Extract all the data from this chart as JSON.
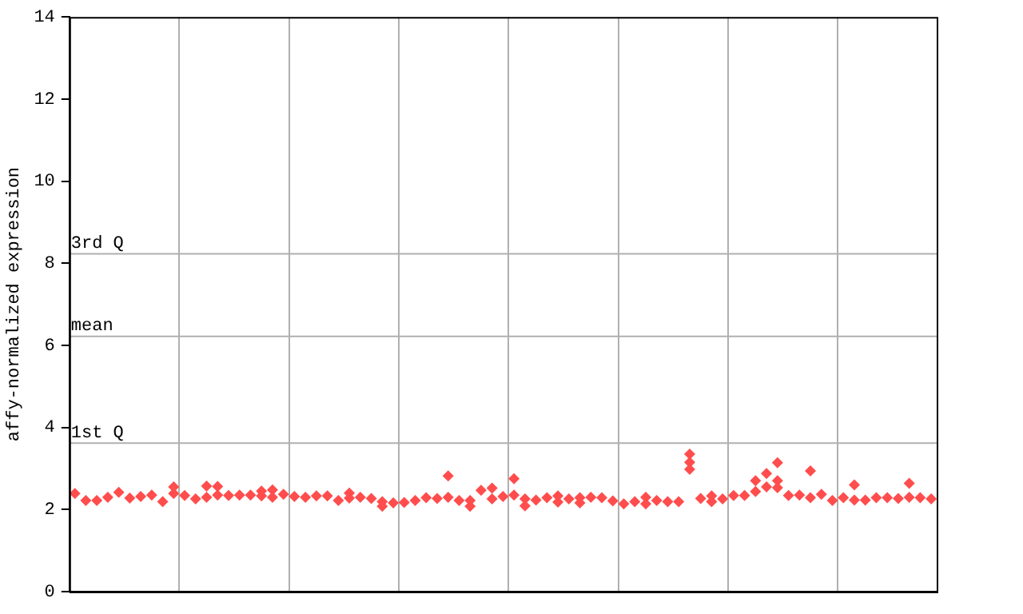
{
  "chart_data": {
    "type": "scatter",
    "ylabel": "affy-normalized expression",
    "categories": [
      null,
      null,
      null,
      null,
      null,
      null,
      null,
      null,
      null,
      null,
      null,
      null,
      null,
      null,
      null,
      null,
      null,
      null,
      null,
      null,
      null,
      null,
      null,
      null,
      null,
      null,
      null,
      null,
      null,
      null,
      null,
      null,
      null,
      null,
      null,
      null,
      null,
      null,
      null,
      null,
      null,
      null,
      null,
      null,
      null,
      null,
      null,
      null,
      null,
      null,
      null,
      null,
      null,
      null,
      null,
      null,
      null,
      null,
      null,
      null,
      null,
      null,
      null,
      null,
      null,
      null,
      null,
      null,
      null,
      null,
      null,
      null,
      null,
      null,
      null,
      null,
      null,
      null,
      null
    ],
    "ylim": [
      0,
      14
    ],
    "yticks": [
      0,
      2,
      4,
      6,
      8,
      10,
      12,
      14
    ],
    "grid": "x",
    "tick_labels": "y",
    "marker": "diamond",
    "legend": false,
    "ref_lines": [
      {
        "axis": "y",
        "value": 8.23,
        "label": "3rd Q",
        "color": "#b0b0b0"
      },
      {
        "axis": "y",
        "value": 6.22,
        "label": "mean",
        "color": "#b0b0b0"
      },
      {
        "axis": "y",
        "value": 3.62,
        "label": "1st Q",
        "color": "#b0b0b0"
      }
    ],
    "series": [
      {
        "color": "#ff4d4d",
        "values": [
          2.39,
          2.22,
          2.22,
          2.3,
          2.42,
          2.28,
          2.32,
          2.35,
          2.19,
          2.55,
          2.34,
          2.26,
          2.3,
          2.56,
          2.34,
          2.35,
          2.35,
          2.45,
          2.48,
          2.37,
          2.32,
          2.3,
          2.33,
          2.33,
          2.22,
          2.4,
          2.3,
          2.27,
          2.19,
          2.16,
          2.17,
          2.22,
          2.29,
          2.27,
          2.82,
          2.22,
          2.22,
          2.47,
          2.52,
          2.32,
          2.75,
          2.26,
          2.23,
          2.29,
          2.33,
          2.26,
          2.29,
          2.3,
          2.29,
          2.21,
          2.14,
          2.19,
          2.3,
          2.22,
          2.19,
          2.19,
          3.35,
          2.27,
          2.33,
          2.26,
          2.34,
          2.34,
          2.7,
          2.88,
          3.14,
          2.34,
          2.35,
          2.94,
          2.37,
          2.22,
          2.29,
          2.6,
          2.23,
          2.29,
          2.29,
          2.27,
          2.64,
          2.29,
          2.26
        ]
      },
      {
        "color": "#ff4d4d",
        "values": [
          null,
          null,
          null,
          null,
          null,
          null,
          null,
          null,
          null,
          2.39,
          null,
          null,
          2.57,
          2.35,
          null,
          null,
          null,
          2.33,
          2.3,
          null,
          null,
          null,
          null,
          null,
          null,
          2.28,
          null,
          null,
          2.08,
          null,
          null,
          null,
          null,
          null,
          2.3,
          null,
          2.08,
          null,
          2.26,
          null,
          2.35,
          2.09,
          null,
          null,
          2.18,
          null,
          2.16,
          null,
          null,
          null,
          null,
          null,
          2.14,
          null,
          null,
          null,
          3.15,
          null,
          2.19,
          null,
          null,
          null,
          2.44,
          2.55,
          2.7,
          null,
          null,
          2.29,
          null,
          null,
          null,
          2.23,
          null,
          null,
          null,
          null,
          2.3,
          null,
          null
        ]
      },
      {
        "color": "#ff4d4d",
        "values": [
          null,
          null,
          null,
          null,
          null,
          null,
          null,
          null,
          null,
          null,
          null,
          null,
          null,
          null,
          null,
          null,
          null,
          null,
          null,
          null,
          null,
          null,
          null,
          null,
          null,
          null,
          null,
          null,
          null,
          null,
          null,
          null,
          null,
          null,
          null,
          null,
          null,
          null,
          null,
          null,
          null,
          null,
          null,
          null,
          null,
          null,
          null,
          null,
          null,
          null,
          null,
          null,
          null,
          null,
          null,
          null,
          2.98,
          null,
          null,
          null,
          null,
          null,
          null,
          null,
          2.53,
          null,
          null,
          null,
          null,
          null,
          null,
          null,
          null,
          null,
          null,
          null,
          null,
          null,
          null
        ]
      }
    ]
  }
}
